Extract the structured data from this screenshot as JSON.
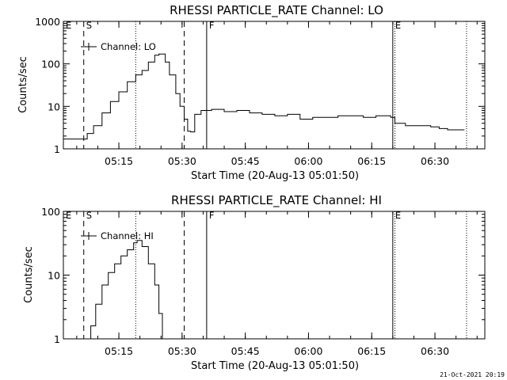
{
  "footer": {
    "timestamp": "21-Oct-2021 20:19"
  },
  "chart_data": [
    {
      "type": "line",
      "title": "RHESSI PARTICLE_RATE Channel: LO",
      "xlabel": "Start Time (20-Aug-13 05:01:50)",
      "ylabel": "Counts/sec",
      "yscale": "log",
      "xlim": [
        "05:01:50",
        "06:41:50"
      ],
      "ylim": [
        1,
        1000
      ],
      "x_ticks": [
        "05:15",
        "05:30",
        "05:45",
        "06:00",
        "06:15",
        "06:30"
      ],
      "y_ticks": [
        "1",
        "10",
        "100",
        "1000"
      ],
      "legend": "top-left",
      "line_color": "#000000",
      "series": [
        {
          "name": "Channel: LO",
          "x": [
            "05:01:50",
            "05:06:00",
            "05:06:40",
            "05:07:30",
            "05:09:00",
            "05:11:00",
            "05:13:00",
            "05:15:00",
            "05:17:00",
            "05:19:00",
            "05:20:30",
            "05:22:00",
            "05:23:30",
            "05:24:30",
            "05:26:00",
            "05:27:00",
            "05:28:30",
            "05:29:30",
            "05:30:30",
            "05:31:20",
            "05:32:00",
            "05:33:00",
            "05:34:30",
            "05:37:00",
            "05:40:00",
            "05:43:00",
            "05:46:00",
            "05:49:00",
            "05:52:00",
            "05:55:00",
            "05:58:00",
            "06:01:00",
            "06:04:00",
            "06:07:00",
            "06:10:00",
            "06:13:00",
            "06:16:00",
            "06:19:30",
            "06:20:30",
            "06:23:00",
            "06:26:00",
            "06:29:00",
            "06:31:00",
            "06:33:00",
            "06:35:00",
            "06:37:00"
          ],
          "values": [
            1.7,
            1.7,
            1.7,
            2.3,
            3.5,
            7,
            13,
            22,
            38,
            55,
            70,
            110,
            160,
            170,
            110,
            55,
            20,
            10,
            5,
            2.6,
            2.5,
            6.5,
            8,
            8.5,
            7.5,
            8,
            7,
            6.5,
            6,
            6.5,
            5,
            5.5,
            5.5,
            6,
            6,
            5.5,
            6,
            5.5,
            4,
            3.5,
            3.5,
            3.3,
            3,
            2.8,
            2.8,
            2.8
          ]
        }
      ],
      "markers": [
        {
          "label": "E",
          "time": "05:01:50",
          "style": "solid"
        },
        {
          "label": "S",
          "time": "05:06:40",
          "style": "dashed"
        },
        {
          "label": "",
          "time": "05:19:00",
          "style": "dotted"
        },
        {
          "label": "",
          "time": "05:30:30",
          "style": "dashed"
        },
        {
          "label": "F",
          "time": "05:35:50",
          "style": "solid"
        },
        {
          "label": "E",
          "time": "06:20:00",
          "style": "solid"
        },
        {
          "label": "",
          "time": "06:20:30",
          "style": "dotted"
        },
        {
          "label": "",
          "time": "06:37:30",
          "style": "dotted"
        }
      ]
    },
    {
      "type": "line",
      "title": "RHESSI PARTICLE_RATE Channel: HI",
      "xlabel": "Start Time (20-Aug-13 05:01:50)",
      "ylabel": "Counts/sec",
      "yscale": "log",
      "xlim": [
        "05:01:50",
        "06:41:50"
      ],
      "ylim": [
        1,
        100
      ],
      "x_ticks": [
        "05:15",
        "05:30",
        "05:45",
        "06:00",
        "06:15",
        "06:30"
      ],
      "y_ticks": [
        "1",
        "10",
        "100"
      ],
      "legend": "top-left",
      "line_color": "#000000",
      "series": [
        {
          "name": "Channel: HI",
          "x": [
            "05:07:40",
            "05:08:20",
            "05:09:30",
            "05:11:00",
            "05:12:30",
            "05:14:00",
            "05:15:30",
            "05:17:00",
            "05:18:30",
            "05:19:20",
            "05:20:30",
            "05:22:00",
            "05:23:30",
            "05:24:30",
            "05:25:20"
          ],
          "values": [
            1.0,
            1.6,
            3.5,
            7,
            11,
            15,
            20,
            25,
            32,
            35,
            28,
            15,
            7,
            2.5,
            1.0
          ]
        }
      ],
      "markers": [
        {
          "label": "E",
          "time": "05:01:50",
          "style": "solid"
        },
        {
          "label": "S",
          "time": "05:06:40",
          "style": "dashed"
        },
        {
          "label": "",
          "time": "05:19:00",
          "style": "dotted"
        },
        {
          "label": "",
          "time": "05:30:30",
          "style": "dashed"
        },
        {
          "label": "F",
          "time": "05:35:50",
          "style": "solid"
        },
        {
          "label": "E",
          "time": "06:20:00",
          "style": "solid"
        },
        {
          "label": "",
          "time": "06:20:30",
          "style": "dotted"
        },
        {
          "label": "",
          "time": "06:37:30",
          "style": "dotted"
        }
      ]
    }
  ]
}
